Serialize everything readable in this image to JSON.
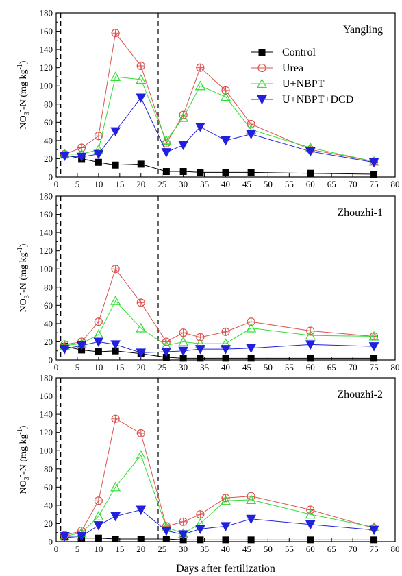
{
  "chart_data": {
    "type": "line",
    "xlabel": "Days after fertilization",
    "ylabel": "NO3--N (mg kg-1)",
    "ylabel_parts": {
      "main": "NO",
      "sub": "3",
      "sup": "-",
      "rest": "-N (mg kg",
      "sup2": "-1",
      "end": ")"
    },
    "xlim": [
      0,
      80
    ],
    "ylim": [
      0,
      180
    ],
    "xticks": [
      "0",
      "5",
      "10",
      "15",
      "20",
      "25",
      "30",
      "35",
      "40",
      "45",
      "50",
      "55",
      "60",
      "65",
      "70",
      "75",
      "80"
    ],
    "yticks": [
      "0",
      "20",
      "40",
      "60",
      "80",
      "100",
      "120",
      "140",
      "160",
      "180"
    ],
    "vlines": [
      1,
      24
    ],
    "x": [
      2,
      6,
      10,
      14,
      20,
      26,
      30,
      34,
      40,
      46,
      60,
      75
    ],
    "legend": [
      "Control",
      "Urea",
      "U+NBPT",
      "U+NBPT+DCD"
    ],
    "colors": {
      "Control": "#000000",
      "Urea": "#d9534f",
      "U+NBPT": "#33dd33",
      "U+NBPT+DCD": "#2020dd"
    },
    "panels": [
      {
        "title": "Yangling",
        "series": [
          {
            "name": "Control",
            "values": [
              24,
              20,
              16,
              13,
              14,
              6,
              6,
              5,
              5,
              5,
              4,
              3
            ]
          },
          {
            "name": "Urea",
            "values": [
              25,
              32,
              45,
              158,
              122,
              37,
              68,
              120,
              95,
              58,
              30,
              17
            ]
          },
          {
            "name": "U+NBPT",
            "values": [
              25,
              25,
              30,
              110,
              107,
              40,
              65,
              100,
              88,
              52,
              32,
              17
            ]
          },
          {
            "name": "U+NBPT+DCD",
            "values": [
              23,
              22,
              25,
              50,
              87,
              27,
              35,
              55,
              40,
              47,
              28,
              16
            ]
          }
        ]
      },
      {
        "title": "Zhouzhi-1",
        "series": [
          {
            "name": "Control",
            "values": [
              15,
              11,
              9,
              10,
              7,
              3,
              2,
              2,
              2,
              2,
              2,
              2
            ]
          },
          {
            "name": "Urea",
            "values": [
              17,
              20,
              42,
              100,
              63,
              20,
              30,
              25,
              31,
              42,
              32,
              26
            ]
          },
          {
            "name": "U+NBPT",
            "values": [
              16,
              18,
              28,
              65,
              35,
              16,
              20,
              18,
              18,
              35,
              27,
              26
            ]
          },
          {
            "name": "U+NBPT+DCD",
            "values": [
              12,
              16,
              20,
              17,
              8,
              9,
              10,
              12,
              12,
              13,
              17,
              15
            ]
          }
        ]
      },
      {
        "title": "Zhouzhi-2",
        "series": [
          {
            "name": "Control",
            "values": [
              5,
              4,
              4,
              3,
              3,
              3,
              2,
              2,
              2,
              2,
              2,
              2
            ]
          },
          {
            "name": "Urea",
            "values": [
              7,
              12,
              45,
              135,
              119,
              17,
              22,
              30,
              48,
              50,
              35,
              15
            ]
          },
          {
            "name": "U+NBPT",
            "values": [
              6,
              10,
              28,
              60,
              95,
              16,
              9,
              20,
              45,
              46,
              30,
              16
            ]
          },
          {
            "name": "U+NBPT+DCD",
            "values": [
              6,
              6,
              18,
              28,
              35,
              12,
              8,
              14,
              17,
              25,
              19,
              13
            ]
          }
        ]
      }
    ]
  }
}
